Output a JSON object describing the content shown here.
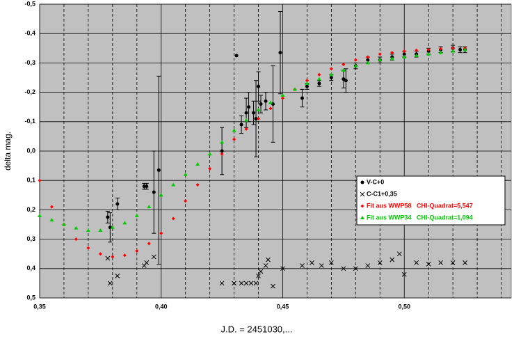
{
  "chart_data": {
    "type": "scatter",
    "y_axis_label": "delta mag.",
    "x_axis_label": "J.D. = 2451030,...",
    "xlim": [
      0.35,
      0.544
    ],
    "ylim": [
      -0.5,
      0.5
    ],
    "y_inverted": true,
    "xticks": [
      {
        "value": 0.35,
        "label": "0,35"
      },
      {
        "value": 0.4,
        "label": "0,40"
      },
      {
        "value": 0.45,
        "label": "0,45"
      },
      {
        "value": 0.5,
        "label": "0,50"
      }
    ],
    "yticks": [
      {
        "value": -0.5,
        "label": "-0,5"
      },
      {
        "value": -0.4,
        "label": "-0,4"
      },
      {
        "value": -0.3,
        "label": "-0,3"
      },
      {
        "value": -0.2,
        "label": "-0,2"
      },
      {
        "value": -0.1,
        "label": "-0,1"
      },
      {
        "value": 0,
        "label": "0,0"
      },
      {
        "value": 0.1,
        "label": "0,1"
      },
      {
        "value": 0.2,
        "label": "0,2"
      },
      {
        "value": 0.3,
        "label": "0,3"
      },
      {
        "value": 0.4,
        "label": "0,4"
      },
      {
        "value": 0.5,
        "label": "0,5"
      }
    ],
    "minor_xgrid": [
      0.36,
      0.37,
      0.38,
      0.39,
      0.41,
      0.42,
      0.43,
      0.44,
      0.46,
      0.47,
      0.48,
      0.49,
      0.51,
      0.52,
      0.53,
      0.54
    ],
    "grid": true,
    "legend": "right",
    "series": [
      {
        "name": "V-C+0",
        "color": "#000000",
        "marker": "dot",
        "x": [
          0.378,
          0.379,
          0.382,
          0.393,
          0.394,
          0.397,
          0.399,
          0.425,
          0.431,
          0.433,
          0.435,
          0.436,
          0.438,
          0.439,
          0.44,
          0.441,
          0.443,
          0.446,
          0.449,
          0.458,
          0.46,
          0.465,
          0.47,
          0.475,
          0.476,
          0.48,
          0.485,
          0.49,
          0.495,
          0.5,
          0.505,
          0.51,
          0.515,
          0.52,
          0.523,
          0.525
        ],
        "values": [
          0.225,
          0.26,
          0.18,
          0.12,
          0.12,
          0.14,
          0.065,
          0,
          -0.325,
          -0.09,
          -0.13,
          -0.15,
          -0.13,
          -0.11,
          -0.22,
          -0.16,
          -0.17,
          -0.16,
          -0.335,
          -0.18,
          -0.22,
          -0.23,
          -0.25,
          -0.245,
          -0.24,
          -0.29,
          -0.31,
          -0.31,
          -0.32,
          -0.33,
          -0.33,
          -0.34,
          -0.345,
          -0.35,
          -0.345,
          -0.345
        ],
        "errors": [
          0.02,
          0.05,
          0.02,
          0.01,
          0.01,
          0.14,
          0.32,
          0.08,
          0,
          0.03,
          0.05,
          0.05,
          0.04,
          0.13,
          0.05,
          0.03,
          0.03,
          0.13,
          0.14,
          0.03,
          0.01,
          0.01,
          0.01,
          0.03,
          0.04,
          0.01,
          0.01,
          0.01,
          0.01,
          0.01,
          0.01,
          0.01,
          0.01,
          0.01,
          0.01,
          0.01
        ]
      },
      {
        "name": "C-C1+0,35",
        "color": "#000000",
        "marker": "x",
        "x": [
          0.378,
          0.379,
          0.382,
          0.393,
          0.394,
          0.397,
          0.425,
          0.43,
          0.433,
          0.435,
          0.437,
          0.439,
          0.44,
          0.441,
          0.443,
          0.444,
          0.446,
          0.45,
          0.458,
          0.462,
          0.466,
          0.47,
          0.475,
          0.48,
          0.485,
          0.49,
          0.495,
          0.498,
          0.5,
          0.505,
          0.51,
          0.515,
          0.52,
          0.525
        ],
        "values": [
          0.365,
          0.45,
          0.425,
          0.39,
          0.38,
          0.36,
          0.45,
          0.45,
          0.45,
          0.45,
          0.45,
          0.45,
          0.425,
          0.41,
          0.39,
          0.37,
          0.46,
          0.4,
          0.39,
          0.38,
          0.39,
          0.38,
          0.4,
          0.4,
          0.39,
          0.38,
          0.37,
          0.35,
          0.42,
          0.38,
          0.385,
          0.38,
          0.38,
          0.38
        ]
      },
      {
        "name": "Fit aus WWP58   CHI-Quadrat=5,547",
        "color": "#ff0000",
        "marker": "diamond",
        "x": [
          0.35,
          0.355,
          0.36,
          0.365,
          0.37,
          0.375,
          0.38,
          0.385,
          0.39,
          0.395,
          0.4,
          0.405,
          0.41,
          0.415,
          0.42,
          0.425,
          0.43,
          0.435,
          0.44,
          0.445,
          0.45,
          0.455,
          0.46,
          0.465,
          0.47,
          0.475,
          0.48,
          0.485,
          0.49,
          0.495,
          0.5,
          0.505,
          0.51,
          0.515,
          0.52,
          0.525
        ],
        "values": [
          0.1,
          0.19,
          0.25,
          0.3,
          0.33,
          0.35,
          0.36,
          0.355,
          0.34,
          0.315,
          0.28,
          0.23,
          0.17,
          0.115,
          0.06,
          0.01,
          -0.04,
          -0.075,
          -0.11,
          -0.145,
          -0.18,
          -0.21,
          -0.24,
          -0.26,
          -0.28,
          -0.295,
          -0.31,
          -0.32,
          -0.33,
          -0.335,
          -0.34,
          -0.343,
          -0.345,
          -0.348,
          -0.35,
          -0.35
        ]
      },
      {
        "name": "Fit aus WWP34   CHI-Quadrat=1,094",
        "color": "#00cc00",
        "marker": "triangle",
        "x": [
          0.35,
          0.355,
          0.36,
          0.365,
          0.37,
          0.375,
          0.38,
          0.385,
          0.39,
          0.395,
          0.4,
          0.405,
          0.41,
          0.415,
          0.42,
          0.425,
          0.43,
          0.435,
          0.44,
          0.445,
          0.45,
          0.455,
          0.46,
          0.465,
          0.47,
          0.475,
          0.48,
          0.485,
          0.49,
          0.495,
          0.5,
          0.505,
          0.51,
          0.515,
          0.52,
          0.525
        ],
        "values": [
          0.22,
          0.235,
          0.25,
          0.262,
          0.27,
          0.27,
          0.26,
          0.245,
          0.22,
          0.19,
          0.15,
          0.115,
          0.08,
          0.045,
          0.01,
          -0.03,
          -0.07,
          -0.105,
          -0.14,
          -0.165,
          -0.19,
          -0.21,
          -0.23,
          -0.245,
          -0.26,
          -0.275,
          -0.29,
          -0.3,
          -0.31,
          -0.315,
          -0.32,
          -0.325,
          -0.33,
          -0.335,
          -0.34,
          -0.345
        ]
      }
    ]
  }
}
